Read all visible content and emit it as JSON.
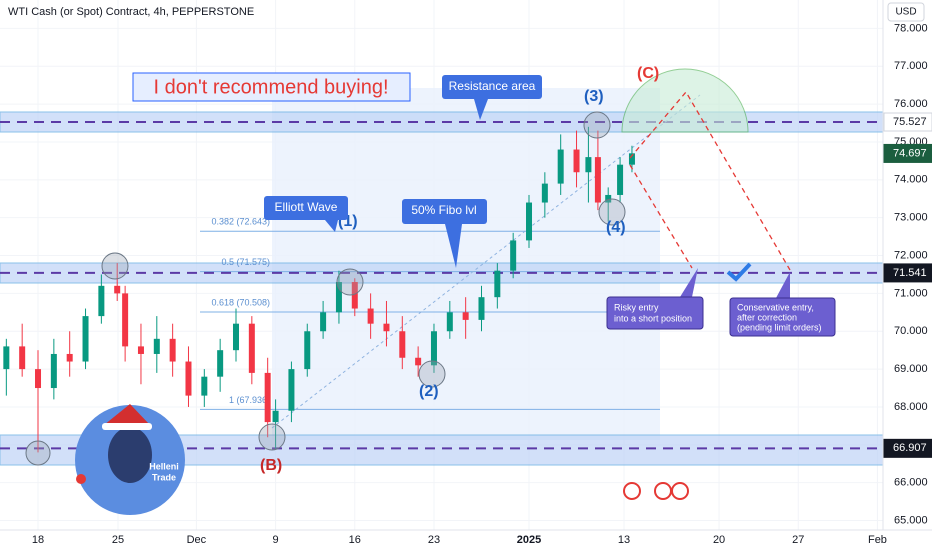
{
  "chart_data": {
    "type": "candlestick",
    "title": "WTI Cash (or Spot) Contract, 4h, PEPPERSTONE",
    "currency": "USD",
    "up_color": "#089981",
    "down_color": "#f23645",
    "x": [
      -0.4,
      -0.2,
      0,
      0.2,
      0.4,
      0.6,
      0.8,
      1.0,
      1.1,
      1.3,
      1.5,
      1.7,
      1.9,
      2.1,
      2.3,
      2.5,
      2.7,
      2.9,
      3.0,
      3.2,
      3.4,
      3.6,
      3.8,
      4.0,
      4.2,
      4.4,
      4.6,
      4.8,
      5.0,
      5.2,
      5.4,
      5.6,
      5.8,
      6.0,
      6.2,
      6.4,
      6.6,
      6.8,
      6.95,
      7.07,
      7.2,
      7.35,
      7.5
    ],
    "open": [
      69.0,
      69.6,
      69.0,
      68.5,
      69.4,
      69.2,
      70.4,
      71.2,
      71.0,
      69.6,
      69.4,
      69.8,
      69.2,
      68.3,
      68.8,
      69.5,
      70.2,
      68.9,
      67.6,
      67.9,
      69.0,
      70.0,
      70.5,
      71.3,
      70.6,
      70.2,
      70.0,
      69.3,
      69.1,
      70.0,
      70.5,
      70.3,
      70.9,
      71.6,
      72.4,
      73.4,
      73.9,
      74.8,
      74.2,
      74.6,
      73.4,
      73.6,
      74.4
    ],
    "high": [
      69.8,
      70.2,
      69.5,
      69.8,
      70.0,
      70.6,
      71.5,
      71.8,
      71.2,
      70.2,
      70.4,
      70.2,
      69.6,
      69.0,
      69.8,
      70.6,
      70.4,
      69.3,
      68.2,
      69.2,
      70.2,
      70.8,
      71.6,
      71.4,
      71.0,
      70.8,
      70.4,
      69.6,
      70.2,
      70.8,
      70.9,
      71.2,
      71.8,
      72.6,
      73.6,
      74.2,
      75.2,
      75.3,
      75.4,
      75.3,
      73.8,
      74.6,
      74.9
    ],
    "low": [
      68.3,
      68.8,
      66.8,
      68.2,
      68.8,
      69.0,
      70.2,
      70.8,
      69.2,
      68.6,
      68.9,
      68.8,
      68.0,
      68.0,
      68.4,
      69.2,
      68.6,
      67.2,
      66.9,
      67.6,
      68.8,
      69.8,
      70.2,
      70.4,
      69.8,
      69.6,
      69.0,
      68.8,
      68.9,
      69.8,
      69.8,
      70.0,
      70.6,
      71.4,
      72.2,
      73.0,
      73.6,
      73.8,
      73.4,
      73.2,
      72.9,
      73.4,
      74.2
    ],
    "close": [
      69.6,
      69.0,
      68.5,
      69.4,
      69.2,
      70.4,
      71.2,
      71.0,
      69.6,
      69.4,
      69.8,
      69.2,
      68.3,
      68.8,
      69.5,
      70.2,
      68.9,
      67.6,
      67.9,
      69.0,
      70.0,
      70.5,
      71.3,
      70.6,
      70.2,
      70.0,
      69.3,
      69.1,
      70.0,
      70.5,
      70.3,
      70.9,
      71.6,
      72.4,
      73.4,
      73.9,
      74.8,
      74.2,
      74.6,
      73.4,
      73.6,
      74.4,
      74.7
    ],
    "xlim": [
      -0.48,
      10.67
    ],
    "xticks": [
      {
        "value": 0,
        "label": "18"
      },
      {
        "value": 1.01,
        "label": "25"
      },
      {
        "value": 2.0,
        "label": "Dec"
      },
      {
        "value": 3.0,
        "label": "9"
      },
      {
        "value": 4.0,
        "label": "16"
      },
      {
        "value": 5.0,
        "label": "23"
      },
      {
        "value": 6.2,
        "label": "2025"
      },
      {
        "value": 7.4,
        "label": "13"
      },
      {
        "value": 8.6,
        "label": "20"
      },
      {
        "value": 9.6,
        "label": "27"
      },
      {
        "value": 10.6,
        "label": "Feb"
      }
    ],
    "ylim": [
      64.75,
      78.75
    ],
    "yticks": [
      {
        "value": 65,
        "label": "65.000"
      },
      {
        "value": 66,
        "label": "66.000"
      },
      {
        "value": 67,
        "label": "67.000"
      },
      {
        "value": 68,
        "label": "68.000"
      },
      {
        "value": 69,
        "label": "69.000"
      },
      {
        "value": 70,
        "label": "70.000"
      },
      {
        "value": 71,
        "label": "71.000"
      },
      {
        "value": 72,
        "label": "72.000"
      },
      {
        "value": 73,
        "label": "73.000"
      },
      {
        "value": 74,
        "label": "74.000"
      },
      {
        "value": 75,
        "label": "75.000"
      },
      {
        "value": 76,
        "label": "76.000"
      },
      {
        "value": 77,
        "label": "77.000"
      },
      {
        "value": 78,
        "label": "78.000"
      }
    ],
    "levels": [
      {
        "value": 75.527,
        "color": "#ffffff",
        "text_color": "#131722",
        "dashed": true
      },
      {
        "value": 74.697,
        "color": "#1b5e3f",
        "text_color": "#ffffff",
        "dashed": false
      },
      {
        "value": 71.541,
        "color": "#131722",
        "text_color": "#ffffff",
        "dashed": true
      },
      {
        "value": 66.907,
        "color": "#131722",
        "text_color": "#ffffff",
        "dashed": true
      }
    ],
    "fib_levels": [
      {
        "value": 72.643,
        "label": "0.382 (72.643)"
      },
      {
        "value": 71.575,
        "label": "0.5 (71.575)"
      },
      {
        "value": 70.508,
        "label": "0.618 (70.508)"
      },
      {
        "value": 67.936,
        "label": "1 (67.936)"
      }
    ]
  },
  "annotations": {
    "headline": "I don't recommend buying!",
    "resistance": "Resistance area",
    "elliott": "Elliott Wave",
    "fibo": "50% Fibo lvl",
    "wave_c": "(C)",
    "wave_3": "(3)",
    "wave_1": "(1)",
    "wave_2": "(2)",
    "wave_4": "(4)",
    "wave_b": "(B)",
    "risky": [
      "Risky entry",
      "into a short position"
    ],
    "conservative": [
      "Conservative entry,",
      "after correction",
      "(pending limit orders)"
    ],
    "avatar": [
      "Helleni",
      "Trade"
    ]
  }
}
